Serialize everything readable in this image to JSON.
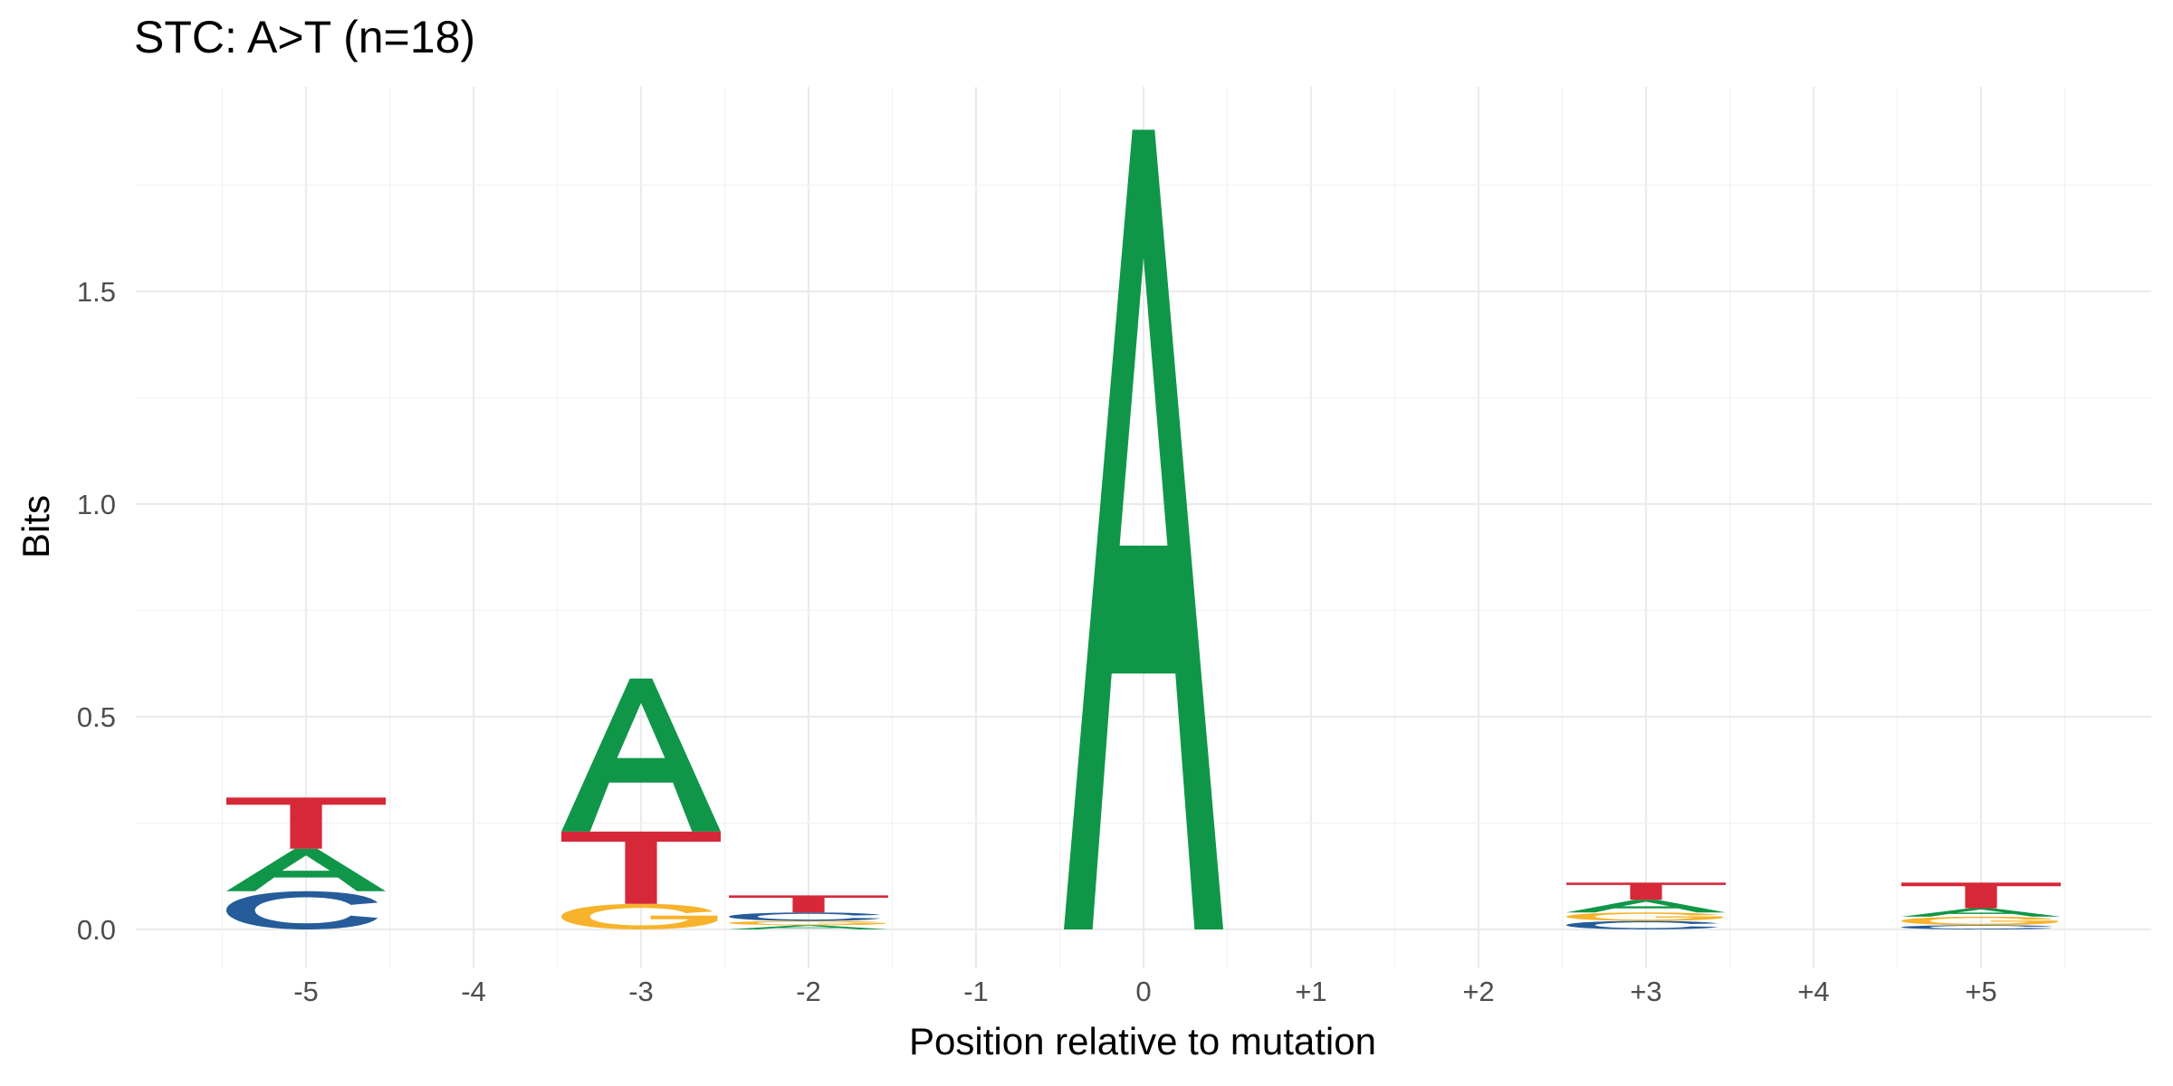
{
  "chart_data": {
    "type": "sequence-logo",
    "title": "STC: A>T (n=18)",
    "xlabel": "Position relative to mutation",
    "ylabel": "Bits",
    "categories": [
      "-5",
      "-4",
      "-3",
      "-2",
      "-1",
      "0",
      "+1",
      "+2",
      "+3",
      "+4",
      "+5"
    ],
    "ylim": [
      -0.08,
      1.88
    ],
    "yticks": [
      0.0,
      0.5,
      1.0,
      1.5
    ],
    "ytick_labels": [
      "0.0",
      "0.5",
      "1.0",
      "1.5"
    ],
    "grid": true,
    "legend": "none",
    "colors": {
      "A": "#109648",
      "C": "#255C99",
      "G": "#F7B32B",
      "T": "#D62839"
    },
    "stacks": [
      {
        "position": "-5",
        "letters": [
          {
            "letter": "C",
            "bits": 0.09
          },
          {
            "letter": "A",
            "bits": 0.1
          },
          {
            "letter": "T",
            "bits": 0.12
          }
        ]
      },
      {
        "position": "-4",
        "letters": []
      },
      {
        "position": "-3",
        "letters": [
          {
            "letter": "G",
            "bits": 0.06
          },
          {
            "letter": "T",
            "bits": 0.17
          },
          {
            "letter": "A",
            "bits": 0.36
          }
        ]
      },
      {
        "position": "-2",
        "letters": [
          {
            "letter": "A",
            "bits": 0.01
          },
          {
            "letter": "G",
            "bits": 0.01
          },
          {
            "letter": "C",
            "bits": 0.02
          },
          {
            "letter": "T",
            "bits": 0.04
          }
        ]
      },
      {
        "position": "-1",
        "letters": []
      },
      {
        "position": "0",
        "letters": [
          {
            "letter": "A",
            "bits": 1.88
          }
        ]
      },
      {
        "position": "+1",
        "letters": []
      },
      {
        "position": "+2",
        "letters": []
      },
      {
        "position": "+3",
        "letters": [
          {
            "letter": "C",
            "bits": 0.02
          },
          {
            "letter": "G",
            "bits": 0.02
          },
          {
            "letter": "A",
            "bits": 0.03
          },
          {
            "letter": "T",
            "bits": 0.04
          }
        ]
      },
      {
        "position": "+4",
        "letters": []
      },
      {
        "position": "+5",
        "letters": [
          {
            "letter": "C",
            "bits": 0.01
          },
          {
            "letter": "G",
            "bits": 0.02
          },
          {
            "letter": "A",
            "bits": 0.02
          },
          {
            "letter": "T",
            "bits": 0.06
          }
        ]
      }
    ]
  }
}
